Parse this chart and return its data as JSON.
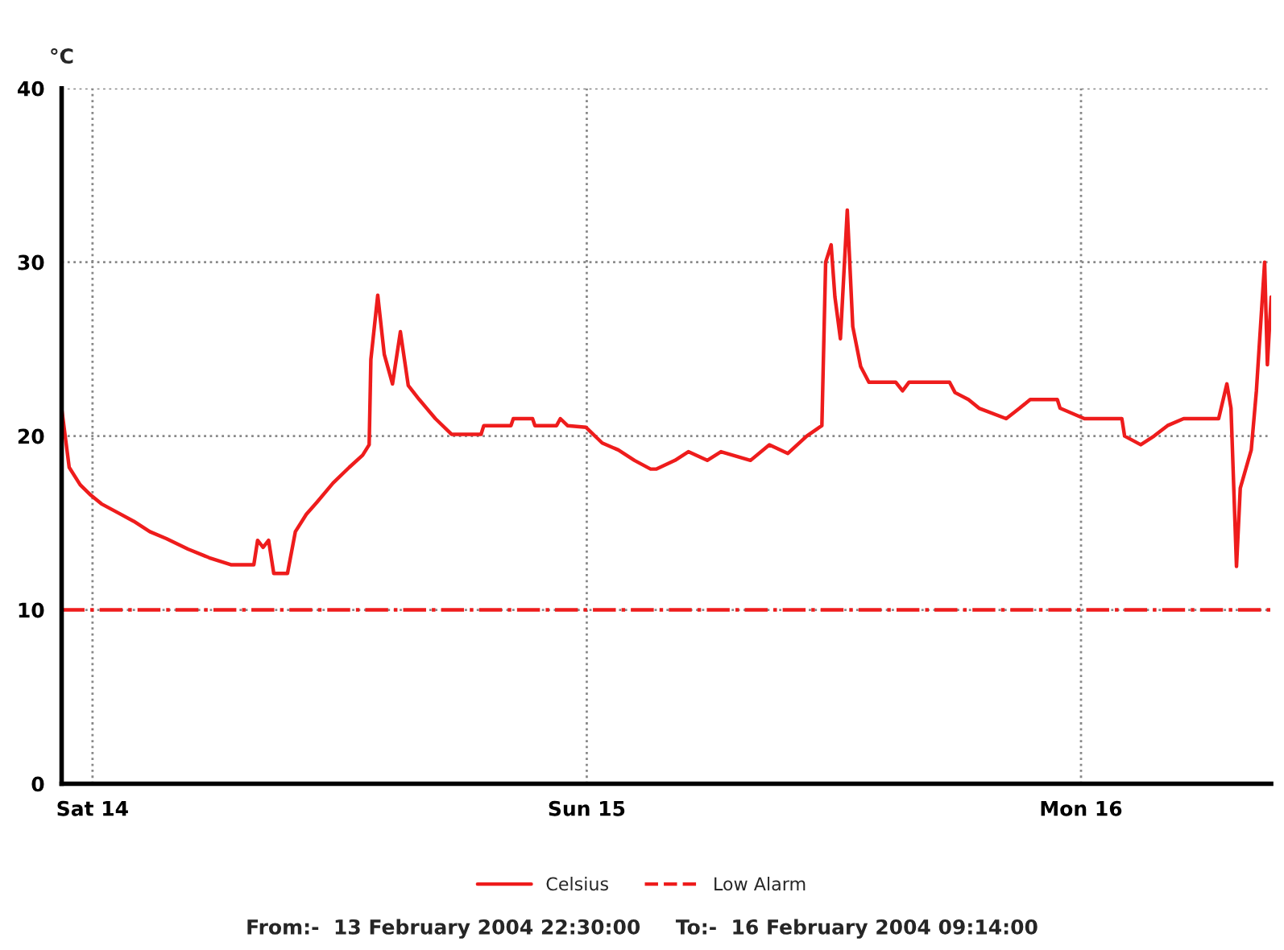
{
  "chart_data": {
    "type": "line",
    "ylabel": "°C",
    "x": [
      "2004-02-13T22:30",
      "2004-02-13T22:52",
      "2004-02-13T23:24",
      "2004-02-13T23:55",
      "2004-02-14T00:26",
      "2004-02-14T01:13",
      "2004-02-14T02:00",
      "2004-02-14T02:47",
      "2004-02-14T03:35",
      "2004-02-14T04:38",
      "2004-02-14T05:40",
      "2004-02-14T06:43",
      "2004-02-14T07:50",
      "2004-02-14T08:01",
      "2004-02-14T08:17",
      "2004-02-14T08:33",
      "2004-02-14T08:48",
      "2004-02-14T09:28",
      "2004-02-14T09:51",
      "2004-02-14T10:23",
      "2004-02-14T10:54",
      "2004-02-14T11:41",
      "2004-02-14T12:28",
      "2004-02-14T13:07",
      "2004-02-14T13:26",
      "2004-02-14T13:31",
      "2004-02-14T13:51",
      "2004-02-14T14:10",
      "2004-02-14T14:34",
      "2004-02-14T14:57",
      "2004-02-14T15:20",
      "2004-02-14T15:52",
      "2004-02-14T16:39",
      "2004-02-14T17:26",
      "2004-02-14T18:52",
      "2004-02-14T19:00",
      "2004-02-14T20:19",
      "2004-02-14T20:26",
      "2004-02-14T21:22",
      "2004-02-14T21:29",
      "2004-02-14T22:32",
      "2004-02-14T22:43",
      "2004-02-14T23:04",
      "2004-02-14T23:58",
      "2004-02-15T00:45",
      "2004-02-15T01:32",
      "2004-02-15T02:19",
      "2004-02-15T03:06",
      "2004-02-15T03:22",
      "2004-02-15T04:17",
      "2004-02-15T04:56",
      "2004-02-15T05:51",
      "2004-02-15T06:31",
      "2004-02-15T07:57",
      "2004-02-15T08:52",
      "2004-02-15T09:46",
      "2004-02-15T10:41",
      "2004-02-15T11:25",
      "2004-02-15T11:36",
      "2004-02-15T11:52",
      "2004-02-15T12:03",
      "2004-02-15T12:19",
      "2004-02-15T12:39",
      "2004-02-15T12:55",
      "2004-02-15T13:18",
      "2004-02-15T13:42",
      "2004-02-15T15:00",
      "2004-02-15T15:20",
      "2004-02-15T15:39",
      "2004-02-15T17:37",
      "2004-02-15T17:53",
      "2004-02-15T18:32",
      "2004-02-15T19:03",
      "2004-02-15T20:22",
      "2004-02-15T21:01",
      "2004-02-15T21:32",
      "2004-02-15T22:51",
      "2004-02-15T22:59",
      "2004-02-16T00:10",
      "2004-02-16T01:59",
      "2004-02-16T02:07",
      "2004-02-16T02:54",
      "2004-02-16T03:33",
      "2004-02-16T04:12",
      "2004-02-16T04:59",
      "2004-02-16T06:41",
      "2004-02-16T07:05",
      "2004-02-16T07:17",
      "2004-02-16T07:33",
      "2004-02-16T07:44",
      "2004-02-16T08:16",
      "2004-02-16T08:31",
      "2004-02-16T08:55",
      "2004-02-16T09:03",
      "2004-02-16T09:14"
    ],
    "series": [
      {
        "name": "Celsius",
        "color": "#ee1c1c",
        "values": [
          21.6,
          18.2,
          17.2,
          16.6,
          16.1,
          15.6,
          15.1,
          14.5,
          14.1,
          13.5,
          13.0,
          12.6,
          12.6,
          14.0,
          13.6,
          14.0,
          12.1,
          12.1,
          14.5,
          15.5,
          16.2,
          17.3,
          18.2,
          18.9,
          19.5,
          24.4,
          28.1,
          24.7,
          23.0,
          26.0,
          22.9,
          22.1,
          21.0,
          20.1,
          20.1,
          20.6,
          20.6,
          21.0,
          21.0,
          20.6,
          20.6,
          21.0,
          20.6,
          20.5,
          19.6,
          19.2,
          18.6,
          18.1,
          18.1,
          18.6,
          19.1,
          18.6,
          19.1,
          18.6,
          19.5,
          19.0,
          20.0,
          20.6,
          30.0,
          31.0,
          28.0,
          25.6,
          33.0,
          26.3,
          24.0,
          23.1,
          23.1,
          22.6,
          23.1,
          23.1,
          22.5,
          22.1,
          21.6,
          21.0,
          21.6,
          22.1,
          22.1,
          21.6,
          21.0,
          21.0,
          20.0,
          19.5,
          20.0,
          20.6,
          21.0,
          21.0,
          23.0,
          21.6,
          12.5,
          17.0,
          19.2,
          22.6,
          30.0,
          24.1,
          28.0
        ]
      }
    ],
    "xlim": [
      "2004-02-13T22:30",
      "2004-02-16T09:14"
    ],
    "xticks": [
      {
        "value": "2004-02-14",
        "label": "Sat 14"
      },
      {
        "value": "2004-02-15",
        "label": "Sun 15"
      },
      {
        "value": "2004-02-16",
        "label": "Mon 16"
      }
    ],
    "ylim": [
      0,
      40
    ],
    "yticks": [
      0,
      10,
      20,
      30,
      40
    ],
    "ref_lines": [
      {
        "axis": "y",
        "value": 10,
        "label": "Low Alarm",
        "color": "#ee1c1c",
        "line_style": "dashed"
      }
    ],
    "grid": true,
    "legend": "bottom",
    "marker": "none",
    "line_style": "solid",
    "annotations": [
      "From:-  13 February 2004 22:30:00     To:-  16 February 2004 09:14:00"
    ]
  }
}
